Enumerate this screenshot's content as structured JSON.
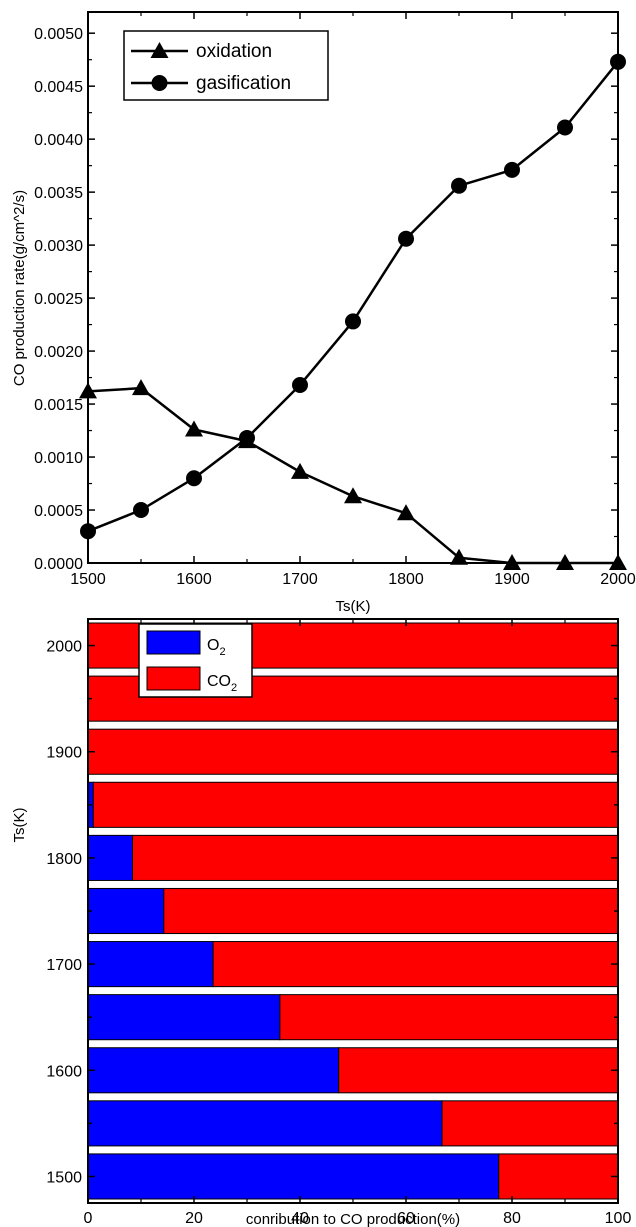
{
  "chart_data": [
    {
      "type": "line",
      "xlabel": "Ts(K)",
      "ylabel": "CO production rate(g/cm^2/s)",
      "xlim": [
        1500,
        2000
      ],
      "ylim": [
        0,
        0.0052
      ],
      "x_ticks": [
        "1500",
        "1600",
        "1700",
        "1800",
        "1900",
        "2000"
      ],
      "y_ticks": [
        "0.0000",
        "0.0005",
        "0.0010",
        "0.0015",
        "0.0020",
        "0.0025",
        "0.0030",
        "0.0035",
        "0.0040",
        "0.0045",
        "0.0050"
      ],
      "legend_position": "top-left",
      "x": [
        1500,
        1550,
        1600,
        1650,
        1700,
        1750,
        1800,
        1850,
        1900,
        1950,
        2000
      ],
      "series": [
        {
          "name": "oxidation",
          "marker": "triangle",
          "values": [
            0.00162,
            0.00165,
            0.00126,
            0.00115,
            0.00086,
            0.00063,
            0.00047,
            5e-05,
            0.0,
            0.0,
            0.0
          ]
        },
        {
          "name": "gasification",
          "marker": "circle",
          "values": [
            0.0003,
            0.0005,
            0.0008,
            0.00118,
            0.00168,
            0.00228,
            0.00306,
            0.00356,
            0.00371,
            0.00411,
            0.00473
          ]
        }
      ]
    },
    {
      "type": "bar",
      "orientation": "horizontal",
      "stacked": true,
      "xlabel": "conribution to CO production(%)",
      "ylabel": "Ts(K)",
      "xlim": [
        0,
        100
      ],
      "x_ticks": [
        "0",
        "20",
        "40",
        "60",
        "80",
        "100"
      ],
      "y_ticks": [
        "1500",
        "1600",
        "1700",
        "1800",
        "1900",
        "2000"
      ],
      "legend_position": "top-left",
      "categories": [
        1500,
        1550,
        1600,
        1650,
        1700,
        1750,
        1800,
        1850,
        1900,
        1950,
        2000
      ],
      "series": [
        {
          "name": "O2",
          "label_main": "O",
          "label_sub": "2",
          "color": "#0000ff",
          "values": [
            77.5,
            66.8,
            47.3,
            36.2,
            23.6,
            14.3,
            8.4,
            1.0,
            0.0,
            0.0,
            0.0
          ]
        },
        {
          "name": "CO2",
          "label_main": "CO",
          "label_sub": "2",
          "color": "#ff0000",
          "values": [
            22.5,
            33.2,
            52.7,
            63.8,
            76.4,
            85.7,
            91.6,
            99.0,
            100.0,
            100.0,
            100.0
          ]
        }
      ]
    }
  ]
}
